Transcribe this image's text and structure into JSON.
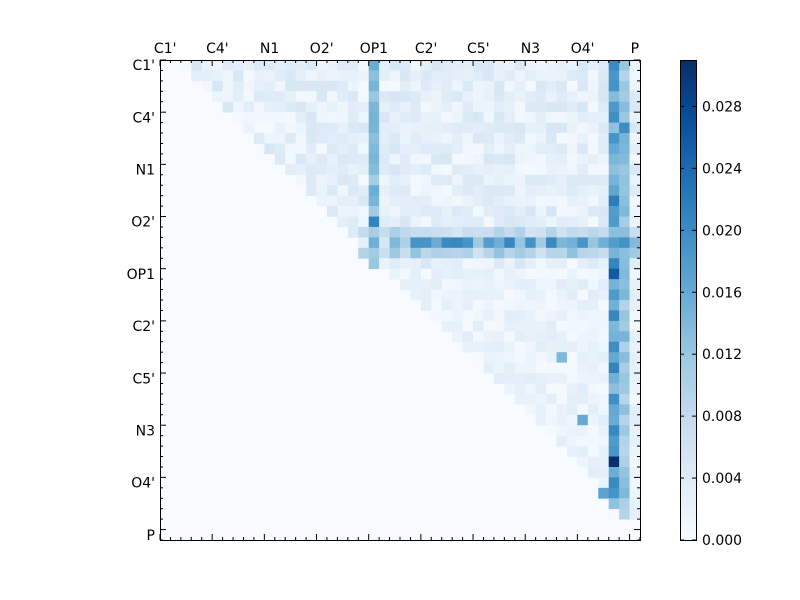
{
  "chart_data": {
    "type": "heatmap",
    "title": "",
    "xlabel": "",
    "ylabel": "",
    "n": 46,
    "row_labels": [
      "C1'",
      "C4'",
      "N1",
      "O2'",
      "OP1",
      "C2'",
      "C5'",
      "N3",
      "O4'",
      "P"
    ],
    "col_labels": [
      "C1'",
      "C4'",
      "N1",
      "O2'",
      "OP1",
      "C2'",
      "C5'",
      "N3",
      "O4'",
      "P"
    ],
    "label_every": 5,
    "layout": "upper-triangle",
    "colormap": "Blues",
    "vmin": 0.0,
    "vmax": 0.031,
    "colorbar": {
      "ticks": [
        0.0,
        0.004,
        0.008,
        0.012,
        0.016,
        0.02,
        0.024,
        0.028
      ],
      "tick_labels": [
        "0.000",
        "0.004",
        "0.008",
        "0.012",
        "0.016",
        "0.020",
        "0.024",
        "0.028"
      ]
    },
    "notable_cells": [
      {
        "row": 1,
        "col": 20,
        "value": 0.013
      },
      {
        "row": 15,
        "col": 20,
        "value": 0.021
      },
      {
        "row": 17,
        "col": 24,
        "value": 0.019
      },
      {
        "row": 17,
        "col": 29,
        "value": 0.019
      },
      {
        "row": 17,
        "col": 40,
        "value": 0.019
      },
      {
        "row": 20,
        "col": 43,
        "value": 0.026
      },
      {
        "row": 13,
        "col": 43,
        "value": 0.022
      },
      {
        "row": 6,
        "col": 44,
        "value": 0.02
      },
      {
        "row": 38,
        "col": 43,
        "value": 0.031
      },
      {
        "row": 41,
        "col": 42,
        "value": 0.017
      },
      {
        "row": 28,
        "col": 38,
        "value": 0.014
      },
      {
        "row": 34,
        "col": 40,
        "value": 0.016
      }
    ],
    "strong_columns": [
      {
        "col": 20,
        "rows": [
          0,
          19
        ],
        "value": 0.013
      },
      {
        "col": 43,
        "rows": [
          0,
          43
        ],
        "value": 0.017
      },
      {
        "col": 44,
        "rows": [
          0,
          44
        ],
        "value": 0.012
      }
    ],
    "strong_rows": [
      {
        "row": 17,
        "cols": [
          22,
          46
        ],
        "value": 0.016
      },
      {
        "row": 16,
        "cols": [
          19,
          46
        ],
        "value": 0.008
      },
      {
        "row": 18,
        "cols": [
          19,
          46
        ],
        "value": 0.01
      }
    ]
  }
}
